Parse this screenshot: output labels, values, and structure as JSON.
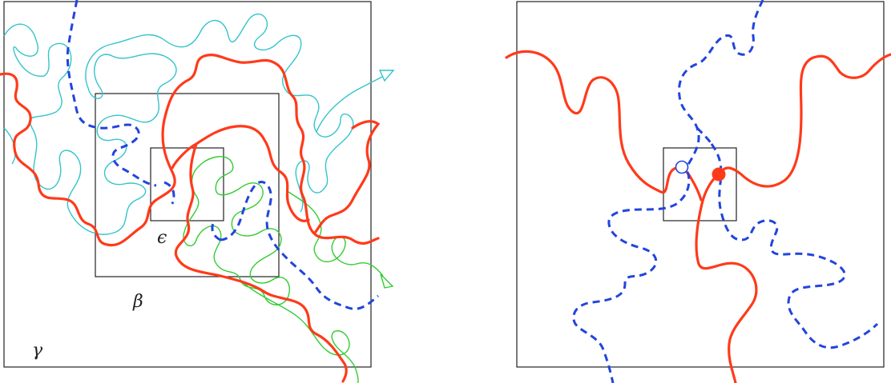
{
  "left_panel": {
    "labels": {
      "outer": "γ",
      "middle": "β",
      "inner": "ϵ"
    }
  },
  "colors": {
    "red_path": "#ff3a1a",
    "blue_dashed": "#2244dd",
    "cyan_path": "#33c4cc",
    "green_path": "#33cc33",
    "box_stroke": "#222222"
  }
}
